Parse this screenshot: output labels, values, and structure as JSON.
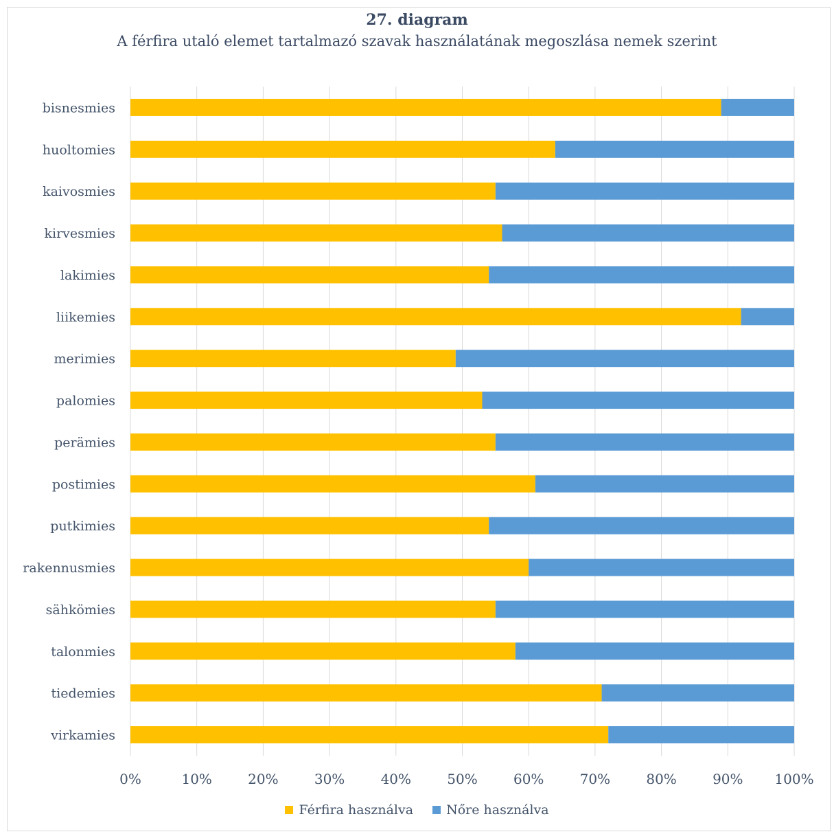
{
  "chart_data": {
    "type": "bar",
    "orientation": "horizontal",
    "stacked": "percent",
    "title": "27. diagram",
    "subtitle": "A férfira utaló elemet tartalmazó szavak használatának megoszlása nemek szerint",
    "categories": [
      "bisnesmies",
      "huoltomies",
      "kaivosmies",
      "kirvesmies",
      "lakimies",
      "liikemies",
      "merimies",
      "palomies",
      "perämies",
      "postimies",
      "putkimies",
      "rakennusmies",
      "sähkömies",
      "talonmies",
      "tiedemies",
      "virkamies"
    ],
    "series": [
      {
        "name": "Férfira használva",
        "color": "#ffc000",
        "values": [
          89,
          64,
          55,
          56,
          54,
          92,
          49,
          53,
          55,
          61,
          54,
          60,
          55,
          58,
          71,
          72
        ]
      },
      {
        "name": "Nőre használva",
        "color": "#5b9bd5",
        "values": [
          11,
          36,
          45,
          44,
          46,
          8,
          51,
          47,
          45,
          39,
          46,
          40,
          45,
          42,
          29,
          28
        ]
      }
    ],
    "xlim": [
      0,
      100
    ],
    "x_ticks": [
      "0%",
      "10%",
      "20%",
      "30%",
      "40%",
      "50%",
      "60%",
      "70%",
      "80%",
      "90%",
      "100%"
    ],
    "grid": true,
    "legend_position": "bottom"
  }
}
